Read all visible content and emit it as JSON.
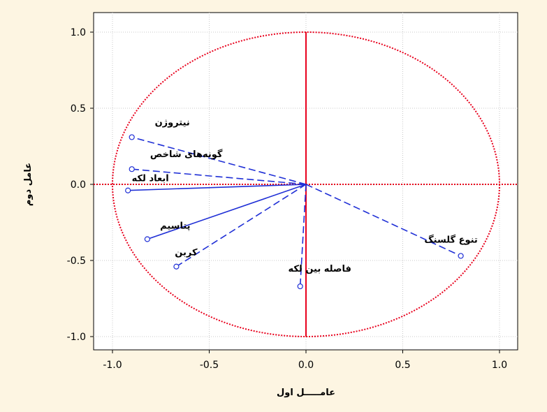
{
  "chart_data": {
    "type": "scatter",
    "subtype": "correlation-circle",
    "xlabel": "عامـــــل اول",
    "ylabel": "عامل دوم",
    "xlim": [
      -1.1,
      1.1
    ],
    "ylim": [
      -1.1,
      1.1
    ],
    "xticks": [
      "-1.0",
      "-0.5",
      "0.0",
      "0.5",
      "1.0"
    ],
    "yticks": [
      "1.0",
      "0.5",
      "0.0",
      "-0.5",
      "-1.0"
    ],
    "grid": true,
    "circle_radius": 1.0,
    "colors": {
      "circle": "#e8001c",
      "vectors": "#1f2fd6",
      "background": "#fdf5e2",
      "plot_area": "#ffffff"
    },
    "points": [
      {
        "label": "نیتروژن",
        "x": -0.9,
        "y": 0.31,
        "line": "dashed"
      },
      {
        "label": "گونه‌های شاخص",
        "x": -0.9,
        "y": 0.1,
        "line": "dashed"
      },
      {
        "label": "ابعاد لکه",
        "x": -0.92,
        "y": -0.04,
        "line": "solid"
      },
      {
        "label": "پتاسیم",
        "x": -0.82,
        "y": -0.36,
        "line": "solid"
      },
      {
        "label": "کربن",
        "x": -0.67,
        "y": -0.54,
        "line": "dashed"
      },
      {
        "label": "فاصله بین لکه",
        "x": -0.03,
        "y": -0.67,
        "line": "dashed"
      },
      {
        "label": "تنوع گلسنگ",
        "x": 0.8,
        "y": -0.47,
        "line": "dashed"
      }
    ]
  }
}
